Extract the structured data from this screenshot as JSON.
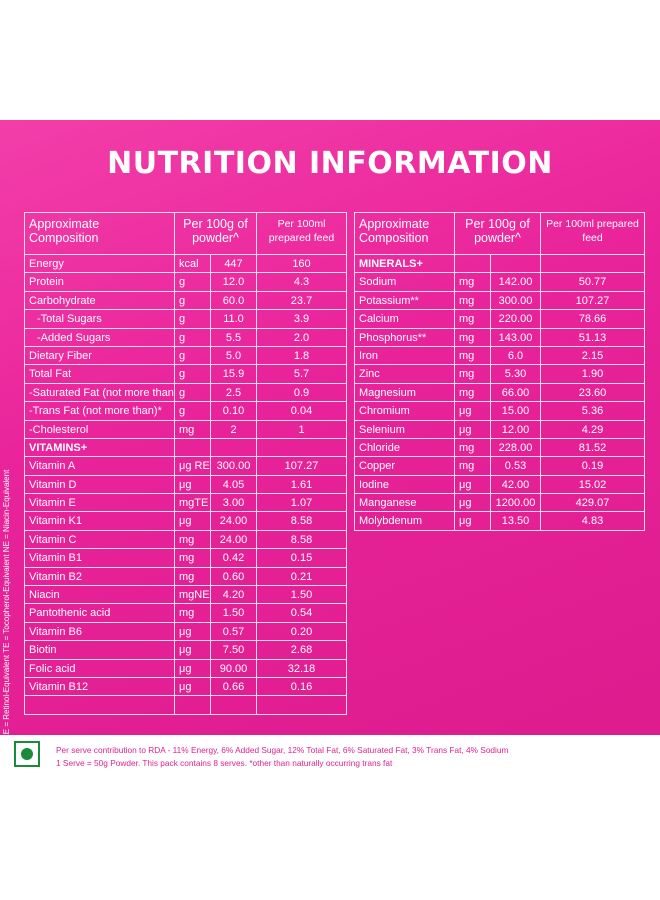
{
  "title": "NUTRITION INFORMATION",
  "left_table": {
    "header": {
      "composition": "Approximate Composition",
      "per100g": "Per 100g of powder^",
      "per100ml": "Per 100ml prepared feed"
    },
    "rows": [
      {
        "name": "Energy",
        "unit": "kcal",
        "per100g": "447",
        "per100ml": "160"
      },
      {
        "name": "Protein",
        "unit": "g",
        "per100g": "12.0",
        "per100ml": "4.3"
      },
      {
        "name": "Carbohydrate",
        "unit": "g",
        "per100g": "60.0",
        "per100ml": "23.7"
      },
      {
        "name": "  -Total Sugars",
        "unit": "g",
        "per100g": "11.0",
        "per100ml": "3.9"
      },
      {
        "name": "  -Added Sugars",
        "unit": "g",
        "per100g": "5.5",
        "per100ml": "2.0"
      },
      {
        "name": "Dietary Fiber",
        "unit": "g",
        "per100g": "5.0",
        "per100ml": "1.8"
      },
      {
        "name": "Total Fat",
        "unit": "g",
        "per100g": "15.9",
        "per100ml": "5.7"
      },
      {
        "name": "-Saturated Fat (not more than)",
        "unit": "g",
        "per100g": "2.5",
        "per100ml": "0.9"
      },
      {
        "name": "-Trans Fat (not more than)*",
        "unit": "g",
        "per100g": "0.10",
        "per100ml": "0.04"
      },
      {
        "name": "-Cholesterol",
        "unit": "mg",
        "per100g": "2",
        "per100ml": "1"
      },
      {
        "name": "VITAMINS+",
        "unit": "",
        "per100g": "",
        "per100ml": "",
        "section": true
      },
      {
        "name": "Vitamin A",
        "unit": "μg RE",
        "per100g": "300.00",
        "per100ml": "107.27"
      },
      {
        "name": "Vitamin D",
        "unit": "μg",
        "per100g": "4.05",
        "per100ml": "1.61"
      },
      {
        "name": "Vitamin E",
        "unit": "mgTE",
        "per100g": "3.00",
        "per100ml": "1.07"
      },
      {
        "name": "Vitamin K1",
        "unit": "μg",
        "per100g": "24.00",
        "per100ml": "8.58"
      },
      {
        "name": "Vitamin C",
        "unit": "mg",
        "per100g": "24.00",
        "per100ml": "8.58"
      },
      {
        "name": "Vitamin B1",
        "unit": "mg",
        "per100g": "0.42",
        "per100ml": "0.15"
      },
      {
        "name": "Vitamin B2",
        "unit": "mg",
        "per100g": "0.60",
        "per100ml": "0.21"
      },
      {
        "name": "Niacin",
        "unit": "mgNE",
        "per100g": "4.20",
        "per100ml": "1.50"
      },
      {
        "name": "Pantothenic acid",
        "unit": "mg",
        "per100g": "1.50",
        "per100ml": "0.54"
      },
      {
        "name": "Vitamin B6",
        "unit": "μg",
        "per100g": "0.57",
        "per100ml": "0.20"
      },
      {
        "name": "Biotin",
        "unit": "μg",
        "per100g": "7.50",
        "per100ml": "2.68"
      },
      {
        "name": "Folic acid",
        "unit": "μg",
        "per100g": "90.00",
        "per100ml": "32.18"
      },
      {
        "name": "Vitamin B12",
        "unit": "μg",
        "per100g": "0.66",
        "per100ml": "0.16"
      },
      {
        "name": "",
        "unit": "",
        "per100g": "",
        "per100ml": ""
      }
    ]
  },
  "right_table": {
    "header": {
      "composition": "Approximate Composition",
      "per100g": "Per 100g of powder^",
      "per100ml": "Per 100ml prepared feed"
    },
    "rows": [
      {
        "name": "MINERALS+",
        "unit": "",
        "per100g": "",
        "per100ml": "",
        "section": true
      },
      {
        "name": "Sodium",
        "unit": "mg",
        "per100g": "142.00",
        "per100ml": "50.77"
      },
      {
        "name": "Potassium**",
        "unit": "mg",
        "per100g": "300.00",
        "per100ml": "107.27"
      },
      {
        "name": "Calcium",
        "unit": "mg",
        "per100g": "220.00",
        "per100ml": "78.66"
      },
      {
        "name": "Phosphorus**",
        "unit": "mg",
        "per100g": "143.00",
        "per100ml": "51.13"
      },
      {
        "name": "Iron",
        "unit": "mg",
        "per100g": "6.0",
        "per100ml": "2.15"
      },
      {
        "name": "Zinc",
        "unit": "mg",
        "per100g": "5.30",
        "per100ml": "1.90"
      },
      {
        "name": "Magnesium",
        "unit": "mg",
        "per100g": "66.00",
        "per100ml": "23.60"
      },
      {
        "name": "Chromium",
        "unit": "μg",
        "per100g": "15.00",
        "per100ml": "5.36"
      },
      {
        "name": "Selenium",
        "unit": "μg",
        "per100g": "12.00",
        "per100ml": "4.29"
      },
      {
        "name": "Chloride",
        "unit": "mg",
        "per100g": "228.00",
        "per100ml": "81.52"
      },
      {
        "name": "Copper",
        "unit": "mg",
        "per100g": "0.53",
        "per100ml": "0.19"
      },
      {
        "name": "Iodine",
        "unit": "μg",
        "per100g": "42.00",
        "per100ml": "15.02"
      },
      {
        "name": "Manganese",
        "unit": "μg",
        "per100g": "1200.00",
        "per100ml": "429.07"
      },
      {
        "name": "Molybdenum",
        "unit": "μg",
        "per100g": "13.50",
        "per100ml": "4.83"
      }
    ]
  },
  "side_note": "RE = Retinol-Equivalent   TE = Tocopherol-Equivalent   NE = Niacin-Equivalent",
  "footer": {
    "line1": "Per serve contribution to RDA - 11% Energy, 6% Added Sugar, 12% Total Fat, 6% Saturated Fat, 3% Trans Fat, 4% Sodium",
    "line2": "1 Serve = 50g Powder. This pack contains 8 serves. *other than naturally occurring trans fat"
  },
  "colors": {
    "panel": "#e9239a",
    "veg_mark": "#1b8a3a",
    "footer_text": "#e0218f"
  }
}
